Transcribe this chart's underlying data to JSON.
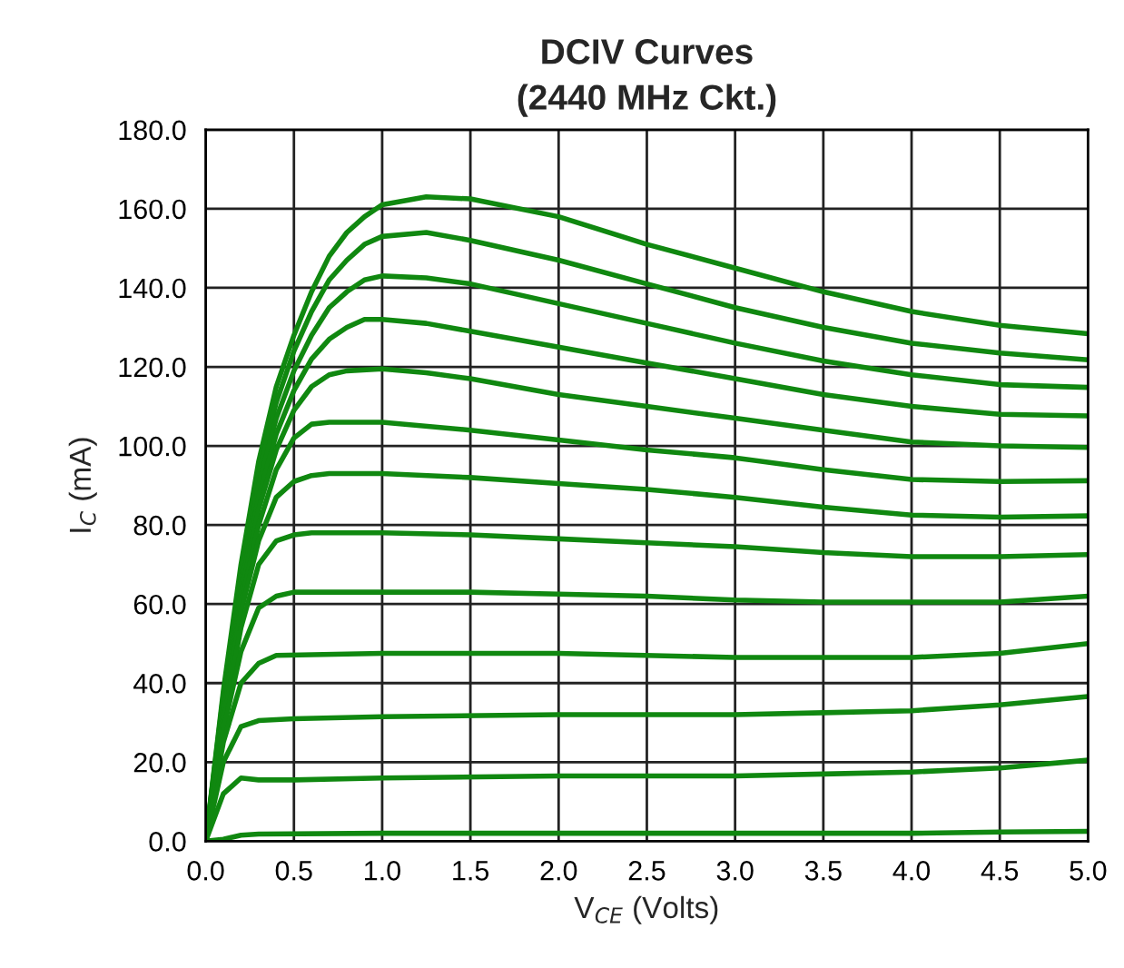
{
  "chart_data": {
    "type": "line",
    "title": "DCIV Curves\n(2440 MHz Ckt.)",
    "xlabel": "V$_{CE}$ (Volts)",
    "ylabel": "I$_{C}$ (mA)",
    "xlim": [
      0,
      5
    ],
    "ylim": [
      0,
      180
    ],
    "xticks": [
      {
        "value": 0,
        "label": "0.0"
      },
      {
        "value": 0.5,
        "label": "0.5"
      },
      {
        "value": 1,
        "label": "1.0"
      },
      {
        "value": 1.5,
        "label": "1.5"
      },
      {
        "value": 2,
        "label": "2.0"
      },
      {
        "value": 2.5,
        "label": "2.5"
      },
      {
        "value": 3,
        "label": "3.0"
      },
      {
        "value": 3.5,
        "label": "3.5"
      },
      {
        "value": 4,
        "label": "4.0"
      },
      {
        "value": 4.5,
        "label": "4.5"
      },
      {
        "value": 5,
        "label": "5.0"
      }
    ],
    "yticks": [
      {
        "value": 0,
        "label": "0.0"
      },
      {
        "value": 20,
        "label": "20.0"
      },
      {
        "value": 40,
        "label": "40.0"
      },
      {
        "value": 60,
        "label": "60.0"
      },
      {
        "value": 80,
        "label": "80.0"
      },
      {
        "value": 100,
        "label": "100.0"
      },
      {
        "value": 120,
        "label": "120.0"
      },
      {
        "value": 140,
        "label": "140.0"
      },
      {
        "value": 160,
        "label": "160.0"
      },
      {
        "value": 180,
        "label": "180.0"
      }
    ],
    "grid": true,
    "legend": false,
    "marker": "none",
    "line_style": "solid",
    "series": [
      {
        "color": "#108810",
        "x": [
          0,
          0.1,
          0.2,
          0.3,
          0.4,
          0.5,
          0.6,
          0.7,
          0.8,
          0.9,
          1.0,
          1.25,
          1.5,
          2.0,
          2.5,
          3.0,
          3.5,
          4.0,
          4.5,
          5.0
        ],
        "values": [
          0,
          38,
          70,
          96,
          115,
          128,
          139,
          148,
          154,
          158,
          161,
          163,
          162.5,
          158,
          151,
          145,
          139,
          134,
          130.5,
          128.4
        ]
      },
      {
        "color": "#108810",
        "x": [
          0,
          0.1,
          0.2,
          0.3,
          0.4,
          0.5,
          0.6,
          0.7,
          0.8,
          0.9,
          1.0,
          1.25,
          1.5,
          2.0,
          2.5,
          3.0,
          3.5,
          4.0,
          4.5,
          5.0
        ],
        "values": [
          0,
          37,
          68,
          93,
          111,
          124,
          134,
          142,
          147,
          151,
          153,
          154,
          152,
          147,
          141,
          135,
          130,
          126,
          123.5,
          121.8
        ]
      },
      {
        "color": "#108810",
        "x": [
          0,
          0.1,
          0.2,
          0.3,
          0.4,
          0.5,
          0.6,
          0.7,
          0.8,
          0.9,
          1.0,
          1.25,
          1.5,
          2.0,
          2.5,
          3.0,
          3.5,
          4.0,
          4.5,
          5.0
        ],
        "values": [
          0,
          36,
          66,
          90,
          107,
          119,
          128,
          135,
          139,
          142,
          143,
          142.5,
          141,
          136,
          131,
          126,
          121.5,
          118,
          115.5,
          114.8
        ]
      },
      {
        "color": "#108810",
        "x": [
          0,
          0.1,
          0.2,
          0.3,
          0.4,
          0.5,
          0.6,
          0.7,
          0.8,
          0.9,
          1.0,
          1.25,
          1.5,
          2.0,
          2.5,
          3.0,
          3.5,
          4.0,
          4.5,
          5.0
        ],
        "values": [
          0,
          35,
          64,
          87,
          103,
          114,
          122,
          127,
          130,
          132,
          132,
          131,
          129,
          125,
          121,
          117,
          113,
          110,
          108,
          107.6
        ]
      },
      {
        "color": "#108810",
        "x": [
          0,
          0.1,
          0.2,
          0.3,
          0.4,
          0.5,
          0.6,
          0.7,
          0.8,
          1.0,
          1.25,
          1.5,
          2.0,
          2.5,
          3.0,
          3.5,
          4.0,
          4.5,
          5.0
        ],
        "values": [
          0,
          34,
          62,
          84,
          99,
          109,
          115,
          118,
          119,
          119.5,
          118.5,
          117,
          113,
          110,
          107,
          104,
          101,
          100,
          99.6
        ]
      },
      {
        "color": "#108810",
        "x": [
          0,
          0.1,
          0.2,
          0.3,
          0.4,
          0.5,
          0.6,
          0.7,
          1.0,
          1.5,
          2.0,
          2.5,
          3.0,
          3.5,
          4.0,
          4.5,
          5.0
        ],
        "values": [
          0,
          33,
          60,
          80,
          94,
          102,
          105.5,
          106,
          106,
          104,
          101.5,
          99,
          97,
          94,
          91.5,
          91,
          91.2
        ]
      },
      {
        "color": "#108810",
        "x": [
          0,
          0.1,
          0.2,
          0.3,
          0.4,
          0.5,
          0.6,
          0.7,
          1.0,
          1.5,
          2.0,
          2.5,
          3.0,
          3.5,
          4.0,
          4.5,
          5.0
        ],
        "values": [
          0,
          32,
          58,
          76,
          87,
          91,
          92.5,
          93,
          93,
          92,
          90.5,
          89,
          87,
          84.5,
          82.5,
          82,
          82.3
        ]
      },
      {
        "color": "#108810",
        "x": [
          0,
          0.1,
          0.2,
          0.3,
          0.4,
          0.5,
          0.6,
          1.0,
          1.5,
          2.0,
          2.5,
          3.0,
          3.5,
          4.0,
          4.5,
          5.0
        ],
        "values": [
          0,
          30,
          54,
          70,
          76,
          77.5,
          78,
          78,
          77.5,
          76.5,
          75.5,
          74.5,
          73,
          72,
          72,
          72.5
        ]
      },
      {
        "color": "#108810",
        "x": [
          0,
          0.1,
          0.2,
          0.3,
          0.4,
          0.5,
          1.0,
          1.5,
          2.0,
          2.5,
          3.0,
          3.5,
          4.0,
          4.5,
          5.0
        ],
        "values": [
          0,
          28,
          48,
          59,
          62,
          63,
          63,
          63,
          62.5,
          62,
          61,
          60.5,
          60.5,
          60.5,
          62
        ]
      },
      {
        "color": "#108810",
        "x": [
          0,
          0.1,
          0.2,
          0.3,
          0.4,
          1.0,
          2.0,
          3.0,
          3.5,
          4.0,
          4.5,
          5.0
        ],
        "values": [
          0,
          25,
          40,
          45,
          47,
          47.5,
          47.5,
          46.5,
          46.5,
          46.5,
          47.5,
          50
        ]
      },
      {
        "color": "#108810",
        "x": [
          0,
          0.1,
          0.2,
          0.3,
          0.5,
          1.0,
          2.0,
          3.0,
          3.5,
          4.0,
          4.5,
          5.0
        ],
        "values": [
          0,
          20,
          29,
          30.5,
          31,
          31.5,
          32,
          32,
          32.5,
          33,
          34.5,
          36.6
        ]
      },
      {
        "color": "#108810",
        "x": [
          0,
          0.1,
          0.2,
          0.3,
          0.5,
          1.0,
          2.0,
          3.0,
          3.5,
          4.0,
          4.5,
          5.0
        ],
        "values": [
          0,
          12,
          16,
          15.5,
          15.5,
          16,
          16.5,
          16.5,
          17,
          17.5,
          18.5,
          20.5
        ]
      },
      {
        "color": "#108810",
        "x": [
          0,
          0.1,
          0.2,
          0.3,
          1.0,
          3.0,
          4.0,
          4.5,
          5.0
        ],
        "values": [
          0,
          0.5,
          1.5,
          1.8,
          2,
          2,
          2,
          2.3,
          2.5
        ]
      }
    ]
  }
}
